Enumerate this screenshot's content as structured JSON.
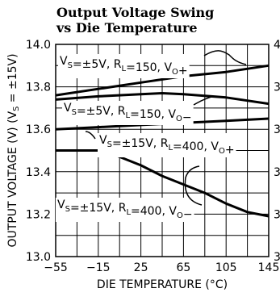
{
  "chart_data": {
    "type": "line",
    "title": [
      "Output Voltage Swing",
      "vs Die Temperature"
    ],
    "xlabel": "DIE TEMPERATURE (°C)",
    "ylabel": "OUTPUT VOLTAGE (V) (V_S = ±15V)",
    "xlim": [
      -55,
      145
    ],
    "ylim": [
      13.0,
      14.0
    ],
    "x_ticks": [
      -55,
      -15,
      25,
      65,
      105,
      145
    ],
    "y_ticks": [
      13.0,
      13.2,
      13.4,
      13.6,
      13.8,
      14.0
    ],
    "x_tick_labels": [
      "-55",
      "-15",
      "25",
      "65",
      "105",
      "145"
    ],
    "y_tick_labels": [
      "13.0",
      "13.2",
      "13.4",
      "13.6",
      "13.8",
      "14.0"
    ],
    "right_tick_labels": [
      "4",
      "3",
      "3",
      "3",
      "3",
      "3"
    ],
    "grid": true,
    "series": [
      {
        "name": "V_S=±5V, R_L=150, V_O+",
        "x": [
          -55,
          -15,
          25,
          65,
          105,
          145
        ],
        "y": [
          13.76,
          13.79,
          13.82,
          13.85,
          13.87,
          13.9
        ]
      },
      {
        "name": "V_S=±5V, R_L=150, V_O-",
        "x": [
          -55,
          -15,
          25,
          45,
          65,
          105,
          145
        ],
        "y": [
          13.74,
          13.755,
          13.765,
          13.77,
          13.765,
          13.75,
          13.72
        ]
      },
      {
        "name": "V_S=±15V, R_L=400, V_O+",
        "x": [
          -55,
          -15,
          25,
          65,
          105,
          145
        ],
        "y": [
          13.6,
          13.61,
          13.62,
          13.63,
          13.64,
          13.65
        ]
      },
      {
        "name": "V_S=±15V, R_L=400, V_O-",
        "x": [
          -55,
          -15,
          -5,
          25,
          45,
          65,
          85,
          105,
          125,
          145
        ],
        "y": [
          13.5,
          13.5,
          13.49,
          13.43,
          13.38,
          13.34,
          13.3,
          13.25,
          13.21,
          13.19
        ]
      }
    ],
    "annotations": [
      {
        "text": "V_S=±5V, R_L=150, V_O+"
      },
      {
        "text": "V_S=±5V, R_L=150, V_O-"
      },
      {
        "text": "V_S=±15V, R_L=400, V_O+"
      },
      {
        "text": "V_S=±15V, R_L=400, V_O-"
      }
    ]
  }
}
